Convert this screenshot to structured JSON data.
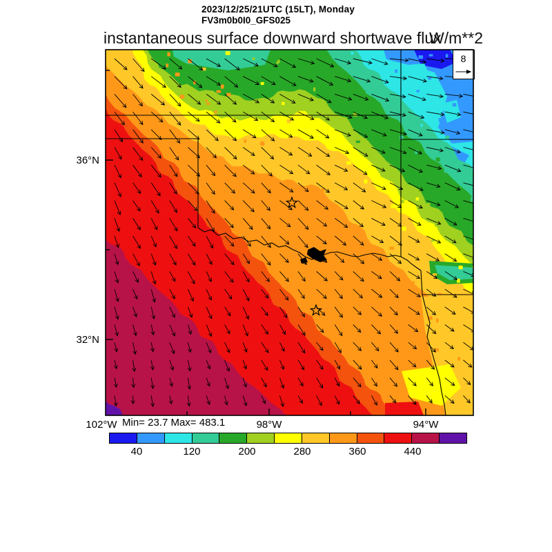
{
  "header": {
    "datetime_line": "2023/12/25/21UTC (15LT), Monday",
    "model_line": "FV3m0b0I0_GFS025",
    "title": "instantaneous surface downward shortwave flux",
    "units_label": "W/m**2"
  },
  "axis": {
    "minmax": "Min= 23.7 Max= 483.1",
    "y_labels": [
      "36°N",
      "32°N"
    ],
    "x_labels": [
      "102°W",
      "98°W",
      "94°W"
    ]
  },
  "vector_legend": {
    "value": "8"
  },
  "colorbar": {
    "tick_labels": [
      "40",
      "120",
      "200",
      "280",
      "360",
      "440"
    ],
    "colors": [
      "#1a1af0",
      "#3399ff",
      "#2ee6e6",
      "#33cc96",
      "#28a828",
      "#a0d020",
      "#ffff00",
      "#ffc828",
      "#ff9818",
      "#f4530e",
      "#ee1010",
      "#b81348",
      "#6012a8"
    ]
  },
  "chart_data": {
    "type": "heatmap",
    "title": "instantaneous surface downward shortwave flux",
    "subtitle": "2023/12/25/21UTC (15LT), Monday",
    "model": "FV3m0b0I0_GFS025",
    "units": "W/m**2",
    "stat_min": 23.7,
    "stat_max": 483.1,
    "colorbar": {
      "bin_edges": [
        0,
        40,
        80,
        120,
        160,
        200,
        240,
        280,
        320,
        360,
        400,
        440,
        480,
        520
      ],
      "colors": [
        "#1a1af0",
        "#3399ff",
        "#2ee6e6",
        "#33cc96",
        "#28a828",
        "#a0d020",
        "#ffff00",
        "#ffc828",
        "#ff9818",
        "#f4530e",
        "#ee1010",
        "#b81348",
        "#6012a8"
      ],
      "labeled_ticks": [
        40,
        120,
        200,
        280,
        360,
        440
      ],
      "position": "bottom horizontal"
    },
    "x_axis": {
      "type": "longitude",
      "ticks": [
        "102°W",
        "98°W",
        "94°W"
      ]
    },
    "y_axis": {
      "type": "latitude",
      "ticks": [
        "36°N",
        "32°N"
      ]
    },
    "overlay_vectors": {
      "kind": "wind arrows",
      "reference_value": 8,
      "direction_pattern": "eastward in NE corner rotating through southeastward in center to southward in SW corner; arrow length decreases toward SW"
    },
    "field_pattern": "flux increases in diagonal NE-to-SW bands: blue/cyan (<80) in NE corner, green ~160-200, yellow/gold ~240-320 arc near top-left and along east side, broad orange 320-360 center, red 400-440 in SW half, dark red 440-480 lower-left triangle, small purple >480 patch at far SW corner; green-teal low patch on east edge and yellow/gold pocket in SE corner",
    "annotations": [
      "two star city markers",
      "state border outlines",
      "winding river along southern state border with small black lake"
    ],
    "grid": false
  }
}
